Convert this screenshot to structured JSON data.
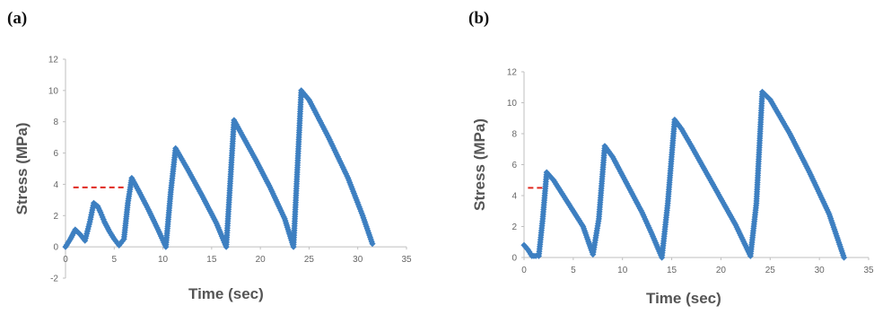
{
  "panels": {
    "a": "(a)",
    "b": "(b)"
  },
  "colors": {
    "series": "#3d7fc1",
    "threshold": "#e0281f",
    "axis": "#bfbfbf",
    "text": "#666666"
  },
  "chart_data": [
    {
      "type": "scatter",
      "panel": "(a)",
      "xlabel": "Time  (sec)",
      "ylabel": "Stress   (MPa)",
      "xlim": [
        0,
        35
      ],
      "ylim": [
        -2,
        12
      ],
      "xticks": [
        0,
        5,
        10,
        15,
        20,
        25,
        30,
        35
      ],
      "yticks": [
        -2,
        0,
        2,
        4,
        6,
        8,
        10,
        12
      ],
      "grid": false,
      "series": [
        {
          "x": [
            0,
            0.5,
            1.0,
            1.5,
            2.0,
            2.5,
            2.9,
            3.3,
            3.6,
            4.0,
            4.5,
            5.0,
            5.5,
            6.0,
            6.4,
            6.8,
            7.5,
            8.5,
            9.5,
            10.3,
            10.8,
            11.3,
            12.5,
            14,
            15.5,
            16.5,
            17.3,
            18,
            19.5,
            21,
            22.5,
            23.4,
            24.2,
            25,
            27,
            29,
            30.5,
            31.5
          ],
          "y": [
            0,
            0.5,
            1.1,
            0.8,
            0.4,
            1.6,
            2.8,
            2.6,
            2.2,
            1.6,
            1.0,
            0.5,
            0.1,
            0.5,
            2.8,
            4.4,
            3.6,
            2.4,
            1.1,
            0.0,
            3.5,
            6.3,
            5.0,
            3.3,
            1.5,
            0.0,
            8.1,
            7.3,
            5.6,
            3.8,
            1.8,
            0.0,
            10.0,
            9.4,
            7.0,
            4.4,
            2.0,
            0.2
          ]
        }
      ],
      "threshold": {
        "x": [
          0.8,
          6.2
        ],
        "y": 3.8
      }
    },
    {
      "type": "scatter",
      "panel": "(b)",
      "xlabel": "Time  (sec)",
      "ylabel": "Stress   (MPa)",
      "xlim": [
        0,
        35
      ],
      "ylim": [
        0,
        12
      ],
      "xticks": [
        0,
        5,
        10,
        15,
        20,
        25,
        30,
        35
      ],
      "yticks": [
        0,
        2,
        4,
        6,
        8,
        10,
        12
      ],
      "grid": false,
      "series": [
        {
          "x": [
            0,
            0.4,
            0.8,
            1.2,
            1.5,
            1.9,
            2.3,
            3,
            4,
            5,
            6,
            7,
            7.6,
            8.2,
            9,
            10,
            11,
            12,
            13,
            14,
            14.6,
            15.3,
            16,
            17,
            18.5,
            20,
            21.5,
            23,
            23.6,
            24.2,
            25,
            27,
            29,
            31,
            32.5
          ],
          "y": [
            0.8,
            0.5,
            0.1,
            0.1,
            0.1,
            2.5,
            5.5,
            5.0,
            4.0,
            3.0,
            2.0,
            0.2,
            2.5,
            7.2,
            6.5,
            5.3,
            4.1,
            2.9,
            1.5,
            0.0,
            3.5,
            8.9,
            8.3,
            7.2,
            5.5,
            3.8,
            2.1,
            0.1,
            3.5,
            10.7,
            10.2,
            8.0,
            5.5,
            2.8,
            0.0
          ]
        }
      ],
      "threshold": {
        "x": [
          0.4,
          2.0
        ],
        "y": 4.5
      }
    }
  ]
}
